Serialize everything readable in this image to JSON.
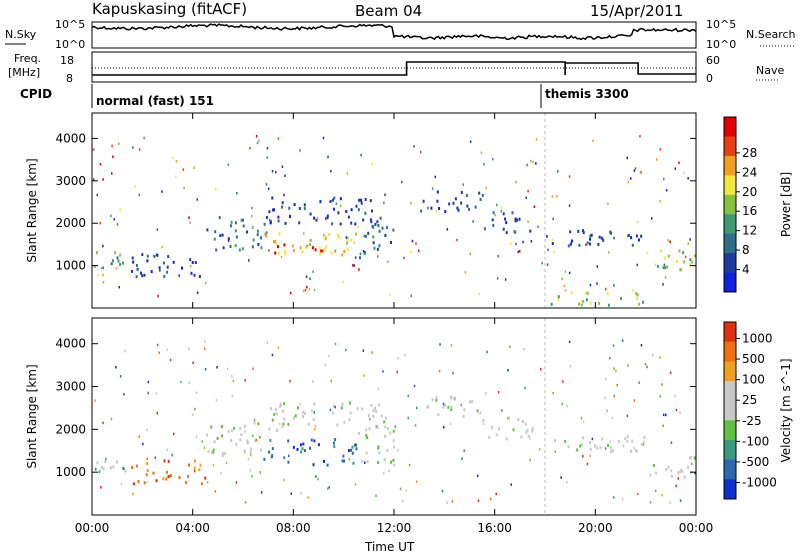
{
  "header": {
    "station": "Kapuskasing (fitACF)",
    "beam": "Beam 04",
    "date": "15/Apr/2011"
  },
  "noise_panel": {
    "left_label": "N.Sky",
    "right_label": "N.Search",
    "left_ticks": [
      "10^5",
      "10^0"
    ],
    "right_ticks": [
      "10^5",
      "10^0"
    ]
  },
  "freq_panel": {
    "left_label_1": "Freq.",
    "left_label_2": "[MHz]",
    "right_label": "Nave",
    "left_ticks": [
      "18",
      "8"
    ],
    "right_ticks": [
      "60",
      "0"
    ]
  },
  "cpid": {
    "label": "CPID",
    "programs": [
      {
        "name": "normal (fast) 151",
        "start_hour": 0
      },
      {
        "name": "themis 3300",
        "start_hour": 18
      }
    ]
  },
  "chart_data": [
    {
      "type": "heatmap",
      "title": "",
      "xlabel": "Time UT",
      "ylabel": "Slant Range [km]",
      "x_ticks": [
        "00:00",
        "04:00",
        "08:00",
        "12:00",
        "16:00",
        "20:00",
        "00:00"
      ],
      "x_hours": [
        0,
        4,
        8,
        12,
        16,
        20,
        24
      ],
      "y_ticks": [
        1000,
        2000,
        3000,
        4000
      ],
      "ylim": [
        0,
        4600
      ],
      "colorbar": {
        "label": "Power [dB]",
        "ticks": [
          "4",
          "8",
          "12",
          "16",
          "20",
          "24",
          "28"
        ],
        "colors": [
          "#1020e0",
          "#1e3a9e",
          "#2c6e8c",
          "#3e9a70",
          "#88c040",
          "#f2e640",
          "#f0a020",
          "#e84010",
          "#e00000"
        ]
      },
      "echo_regions": [
        {
          "t0": 0.0,
          "t1": 1.5,
          "r0": 950,
          "r1": 1350,
          "level": 3
        },
        {
          "t0": 1.5,
          "t1": 4.5,
          "r0": 750,
          "r1": 1300,
          "level": 1
        },
        {
          "t0": 4.5,
          "t1": 7.0,
          "r0": 1400,
          "r1": 2200,
          "level": 2
        },
        {
          "t0": 6.8,
          "t1": 10.5,
          "r0": 1200,
          "r1": 1800,
          "level": 5
        },
        {
          "t0": 7.2,
          "t1": 7.8,
          "r0": 1250,
          "r1": 1550,
          "level": 8
        },
        {
          "t0": 8.7,
          "t1": 9.4,
          "r0": 1250,
          "r1": 1550,
          "level": 8
        },
        {
          "t0": 7.0,
          "t1": 11.8,
          "r0": 2000,
          "r1": 2650,
          "level": 1
        },
        {
          "t0": 10.5,
          "t1": 12.0,
          "r0": 1200,
          "r1": 2000,
          "level": 2
        },
        {
          "t0": 13.0,
          "t1": 15.5,
          "r0": 2300,
          "r1": 2800,
          "level": 1
        },
        {
          "t0": 15.5,
          "t1": 17.5,
          "r0": 1800,
          "r1": 2300,
          "level": 1
        },
        {
          "t0": 18.0,
          "t1": 22.0,
          "r0": 1500,
          "r1": 1900,
          "level": 1
        },
        {
          "t0": 22.0,
          "t1": 24.0,
          "r0": 900,
          "r1": 1400,
          "level": 4
        },
        {
          "t0": 18.0,
          "t1": 22.0,
          "r0": 100,
          "r1": 400,
          "level": 4
        }
      ]
    },
    {
      "type": "heatmap",
      "title": "",
      "xlabel": "Time UT",
      "ylabel": "Slant Range [km]",
      "x_ticks": [
        "00:00",
        "04:00",
        "08:00",
        "12:00",
        "16:00",
        "20:00",
        "00:00"
      ],
      "x_hours": [
        0,
        4,
        8,
        12,
        16,
        20,
        24
      ],
      "y_ticks": [
        1000,
        2000,
        3000,
        4000
      ],
      "ylim": [
        0,
        4600
      ],
      "colorbar": {
        "label": "Velocity [m s^-1]",
        "ticks": [
          "1000",
          "500",
          "100",
          "25",
          "-25",
          "-100",
          "-500",
          "-1000"
        ],
        "colors": [
          "#1030d0",
          "#2a6ab0",
          "#3a9a80",
          "#60c040",
          "#c8c8c8",
          "#c8c8c8",
          "#f0a020",
          "#f07010",
          "#e03010"
        ]
      },
      "echo_regions": [
        {
          "t0": 0.0,
          "t1": 1.5,
          "r0": 950,
          "r1": 1350,
          "level": 4
        },
        {
          "t0": 1.5,
          "t1": 4.5,
          "r0": 750,
          "r1": 1300,
          "level": 7
        },
        {
          "t0": 4.5,
          "t1": 7.0,
          "r0": 1400,
          "r1": 2200,
          "level": 4
        },
        {
          "t0": 6.8,
          "t1": 10.5,
          "r0": 1200,
          "r1": 1800,
          "level": 1
        },
        {
          "t0": 7.0,
          "t1": 11.8,
          "r0": 2000,
          "r1": 2650,
          "level": 4
        },
        {
          "t0": 10.5,
          "t1": 12.0,
          "r0": 1200,
          "r1": 2000,
          "level": 4
        },
        {
          "t0": 13.0,
          "t1": 15.5,
          "r0": 2300,
          "r1": 2800,
          "level": 4
        },
        {
          "t0": 15.5,
          "t1": 17.5,
          "r0": 1800,
          "r1": 2300,
          "level": 4
        },
        {
          "t0": 18.0,
          "t1": 22.0,
          "r0": 1500,
          "r1": 1900,
          "level": 4
        },
        {
          "t0": 22.0,
          "t1": 24.0,
          "r0": 900,
          "r1": 1400,
          "level": 4
        }
      ]
    }
  ]
}
